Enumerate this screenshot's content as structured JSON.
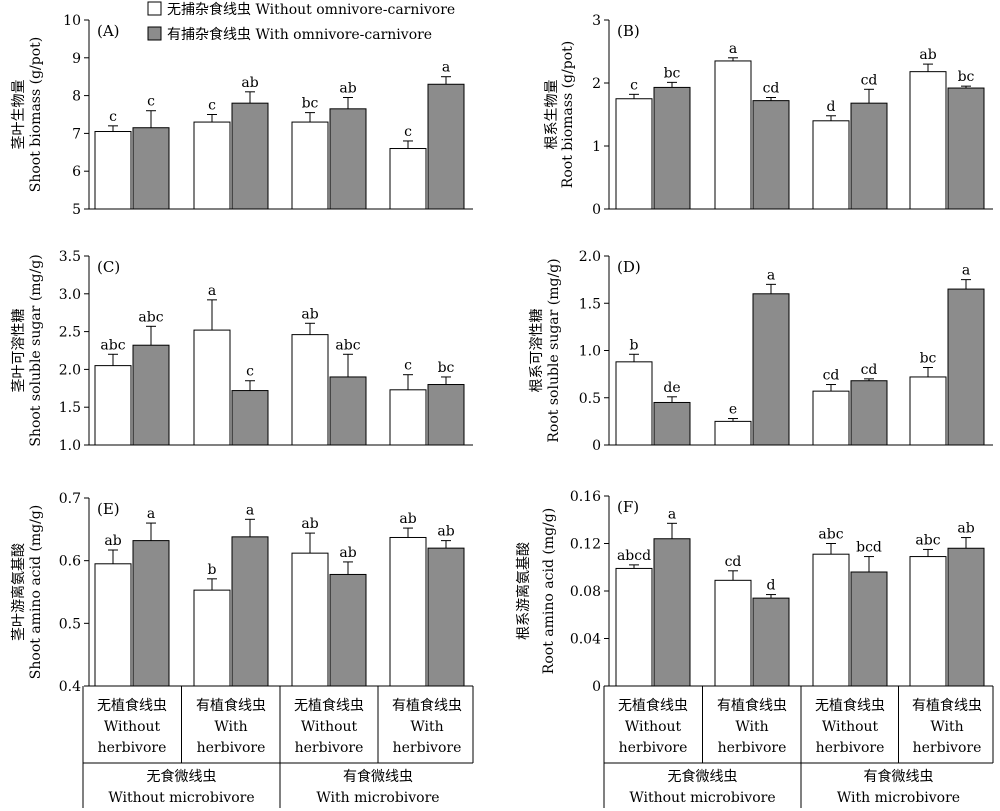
{
  "legend": {
    "without": "无捕杂食线虫 Without omnivore-carnivore",
    "with": "有捕杂食线虫 With omnivore-carnivore"
  },
  "colors": {
    "open": "#ffffff",
    "filled": "#8c8c8c",
    "stroke": "#000000"
  },
  "x_axis": {
    "groups": [
      {
        "zh": "无植食线虫",
        "en1": "Without",
        "en2": "herbivore"
      },
      {
        "zh": "有植食线虫",
        "en1": "With",
        "en2": "herbivore"
      },
      {
        "zh": "无植食线虫",
        "en1": "Without",
        "en2": "herbivore"
      },
      {
        "zh": "有植食线虫",
        "en1": "With",
        "en2": "herbivore"
      }
    ],
    "super": [
      {
        "zh": "无食微线虫",
        "en": "Without microbivore"
      },
      {
        "zh": "有食微线虫",
        "en": "With microbivore"
      }
    ]
  },
  "chart_data": [
    {
      "panel": "(A)",
      "type": "bar",
      "ylabel_zh": "茎叶生物量",
      "ylabel_en": "Shoot biomass (g/pot)",
      "ylim": [
        5,
        10
      ],
      "yticks": [
        5,
        6,
        7,
        8,
        9,
        10
      ],
      "tick_labels": [
        "5",
        "6",
        "7",
        "8",
        "9",
        "10"
      ],
      "series": [
        {
          "name": "无捕杂食线虫 Without omnivore-carnivore",
          "values": [
            7.05,
            7.3,
            7.3,
            6.6
          ],
          "errors": [
            0.15,
            0.2,
            0.25,
            0.2
          ],
          "letters": [
            "c",
            "c",
            "bc",
            "c"
          ]
        },
        {
          "name": "有捕杂食线虫 With omnivore-carnivore",
          "values": [
            7.15,
            7.8,
            7.65,
            8.3
          ],
          "errors": [
            0.45,
            0.3,
            0.3,
            0.2
          ],
          "letters": [
            "c",
            "ab",
            "ab",
            "a"
          ]
        }
      ]
    },
    {
      "panel": "(B)",
      "type": "bar",
      "ylabel_zh": "根系生物量",
      "ylabel_en": "Root biomass (g/pot)",
      "ylim": [
        0,
        3
      ],
      "yticks": [
        0,
        1,
        2,
        3
      ],
      "tick_labels": [
        "0",
        "1",
        "2",
        "3"
      ],
      "series": [
        {
          "name": "无捕杂食线虫 Without omnivore-carnivore",
          "values": [
            1.75,
            2.35,
            1.4,
            2.18
          ],
          "errors": [
            0.07,
            0.05,
            0.08,
            0.12
          ],
          "letters": [
            "c",
            "a",
            "d",
            "ab"
          ]
        },
        {
          "name": "有捕杂食线虫 With omnivore-carnivore",
          "values": [
            1.93,
            1.72,
            1.68,
            1.92
          ],
          "errors": [
            0.08,
            0.05,
            0.22,
            0.03
          ],
          "letters": [
            "bc",
            "cd",
            "cd",
            "bc"
          ]
        }
      ]
    },
    {
      "panel": "(C)",
      "type": "bar",
      "ylabel_zh": "茎叶可溶性糖",
      "ylabel_en": "Shoot soluble sugar (mg/g)",
      "ylim": [
        1,
        3.5
      ],
      "yticks": [
        1,
        1.5,
        2,
        2.5,
        3,
        3.5
      ],
      "tick_labels": [
        "1.0",
        "1.5",
        "2.0",
        "2.5",
        "3.0",
        "3.5"
      ],
      "series": [
        {
          "name": "无捕杂食线虫 Without omnivore-carnivore",
          "values": [
            2.05,
            2.52,
            2.46,
            1.73
          ],
          "errors": [
            0.15,
            0.4,
            0.15,
            0.2
          ],
          "letters": [
            "abc",
            "a",
            "ab",
            "c"
          ]
        },
        {
          "name": "有捕杂食线虫 With omnivore-carnivore",
          "values": [
            2.32,
            1.72,
            1.9,
            1.8
          ],
          "errors": [
            0.25,
            0.13,
            0.3,
            0.1
          ],
          "letters": [
            "abc",
            "c",
            "abc",
            "bc"
          ]
        }
      ]
    },
    {
      "panel": "(D)",
      "type": "bar",
      "ylabel_zh": "根系可溶性糖",
      "ylabel_en": "Root soluble sugar (mg/g)",
      "ylim": [
        0,
        2
      ],
      "yticks": [
        0,
        0.5,
        1,
        1.5,
        2
      ],
      "tick_labels": [
        "0",
        "0.5",
        "1.0",
        "1.5",
        "2.0"
      ],
      "series": [
        {
          "name": "无捕杂食线虫 Without omnivore-carnivore",
          "values": [
            0.88,
            0.25,
            0.57,
            0.72
          ],
          "errors": [
            0.08,
            0.03,
            0.07,
            0.1
          ],
          "letters": [
            "b",
            "e",
            "cd",
            "bc"
          ]
        },
        {
          "name": "有捕杂食线虫 With omnivore-carnivore",
          "values": [
            0.45,
            1.6,
            0.68,
            1.65
          ],
          "errors": [
            0.06,
            0.1,
            0.02,
            0.1
          ],
          "letters": [
            "de",
            "a",
            "cd",
            "a"
          ]
        }
      ]
    },
    {
      "panel": "(E)",
      "type": "bar",
      "ylabel_zh": "茎叶游离氨基酸",
      "ylabel_en": "Shoot amino acid (mg/g)",
      "ylim": [
        0.4,
        0.7
      ],
      "yticks": [
        0.4,
        0.5,
        0.6,
        0.7
      ],
      "tick_labels": [
        "0.4",
        "0.5",
        "0.6",
        "0.7"
      ],
      "series": [
        {
          "name": "无捕杂食线虫 Without omnivore-carnivore",
          "values": [
            0.595,
            0.553,
            0.612,
            0.637
          ],
          "errors": [
            0.022,
            0.018,
            0.032,
            0.015
          ],
          "letters": [
            "ab",
            "b",
            "ab",
            "ab"
          ]
        },
        {
          "name": "有捕杂食线虫 With omnivore-carnivore",
          "values": [
            0.632,
            0.638,
            0.578,
            0.62
          ],
          "errors": [
            0.028,
            0.028,
            0.02,
            0.012
          ],
          "letters": [
            "a",
            "a",
            "ab",
            "ab"
          ]
        }
      ]
    },
    {
      "panel": "(F)",
      "type": "bar",
      "ylabel_zh": "根系游离氨基酸",
      "ylabel_en": "Root amino acid (mg/g)",
      "ylim": [
        0,
        0.16
      ],
      "yticks": [
        0,
        0.04,
        0.08,
        0.12,
        0.16
      ],
      "tick_labels": [
        "0",
        "0.04",
        "0.08",
        "0.12",
        "0.16"
      ],
      "series": [
        {
          "name": "无捕杂食线虫 Without omnivore-carnivore",
          "values": [
            0.099,
            0.089,
            0.111,
            0.109
          ],
          "errors": [
            0.003,
            0.008,
            0.009,
            0.006
          ],
          "letters": [
            "abcd",
            "cd",
            "abc",
            "abc"
          ]
        },
        {
          "name": "有捕杂食线虫 With omnivore-carnivore",
          "values": [
            0.124,
            0.074,
            0.096,
            0.116
          ],
          "errors": [
            0.013,
            0.003,
            0.013,
            0.009
          ],
          "letters": [
            "a",
            "d",
            "bcd",
            "ab"
          ]
        }
      ]
    }
  ]
}
